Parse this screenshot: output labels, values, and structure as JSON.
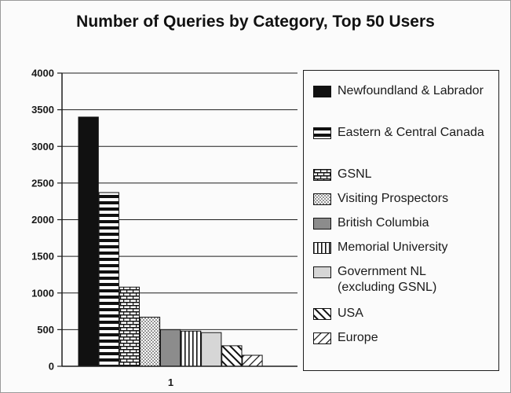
{
  "chart_data": {
    "type": "bar",
    "title": "Number of Queries by Category, Top 50 Users",
    "categories": [
      "1"
    ],
    "series": [
      {
        "name": "Newfoundland & Labrador",
        "values": [
          3400
        ],
        "color": "#111111",
        "pattern": "solid"
      },
      {
        "name": "Eastern & Central Canada",
        "values": [
          2370
        ],
        "color": "#111111",
        "pattern": "h-stripes"
      },
      {
        "name": "GSNL",
        "values": [
          1080
        ],
        "color": "#111111",
        "pattern": "brick"
      },
      {
        "name": "Visiting Prospectors",
        "values": [
          670
        ],
        "color": "#111111",
        "pattern": "dots"
      },
      {
        "name": "British Columbia",
        "values": [
          500
        ],
        "color": "#8c8c8c",
        "pattern": "solid"
      },
      {
        "name": "Memorial University",
        "values": [
          480
        ],
        "color": "#111111",
        "pattern": "v-stripes"
      },
      {
        "name": "Government NL\n(excluding GSNL)",
        "values": [
          460
        ],
        "color": "#d6d6d6",
        "pattern": "solid"
      },
      {
        "name": "USA",
        "values": [
          280
        ],
        "color": "#111111",
        "pattern": "fwd-diag"
      },
      {
        "name": "Europe",
        "values": [
          150
        ],
        "color": "#111111",
        "pattern": "back-diag"
      }
    ],
    "ylim": [
      0,
      4000
    ],
    "yticks": [
      "0",
      "500",
      "1000",
      "1500",
      "2000",
      "2500",
      "3000",
      "3500",
      "4000"
    ],
    "grid": true,
    "legend_position": "right"
  }
}
